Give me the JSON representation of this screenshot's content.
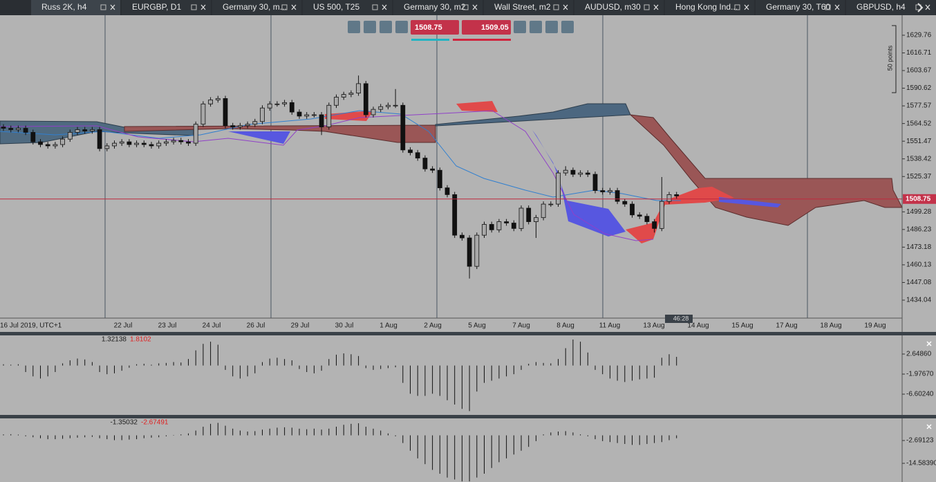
{
  "tabs": [
    "Russ 2K, h4",
    "EURGBP, D1",
    "Germany 30, m...",
    "US 500, T25",
    "Germany 30, m2",
    "Wall Street, m2",
    "AUDUSD, m30",
    "Hong Kong Ind...",
    "Germany 30, T60",
    "GBPUSD, h4"
  ],
  "toolbar": {
    "sell": 1508.75,
    "buy": 1509.05
  },
  "main_chart": {
    "candles": {
      "open": [
        1562,
        1561,
        1560,
        1561,
        1558,
        1551,
        1549,
        1548,
        1549,
        1553,
        1558,
        1560,
        1559,
        1560,
        1546,
        1548,
        1550,
        1551,
        1549,
        1550,
        1549,
        1548,
        1550,
        1551,
        1552,
        1551,
        1550,
        1564,
        1579,
        1582,
        1583,
        1563,
        1562,
        1563,
        1564,
        1566,
        1576,
        1579,
        1579,
        1580,
        1573,
        1570,
        1571,
        1571,
        1562,
        1578,
        1584,
        1586,
        1587,
        1594,
        1571,
        1575,
        1577,
        1578,
        1578,
        1545,
        1543,
        1539,
        1531,
        1530,
        1517,
        1512,
        1482,
        1480,
        1459,
        1482,
        1490,
        1486,
        1492,
        1491,
        1487,
        1502,
        1492,
        1495,
        1505,
        1505,
        1528,
        1530,
        1527,
        1528,
        1527,
        1515,
        1514,
        1515,
        1507,
        1505,
        1497,
        1496,
        1492,
        1487,
        1507,
        1512
      ],
      "high": [
        1564,
        1563,
        1563,
        1563,
        1560,
        1553,
        1551,
        1551,
        1555,
        1560,
        1562,
        1562,
        1562,
        1562,
        1550,
        1552,
        1553,
        1553,
        1552,
        1552,
        1551,
        1552,
        1553,
        1554,
        1554,
        1553,
        1566,
        1581,
        1584,
        1585,
        1585,
        1565,
        1565,
        1566,
        1568,
        1578,
        1581,
        1581,
        1582,
        1582,
        1575,
        1573,
        1573,
        1573,
        1580,
        1586,
        1588,
        1589,
        1600,
        1596,
        1577,
        1579,
        1580,
        1590,
        1580,
        1547,
        1545,
        1541,
        1533,
        1532,
        1519,
        1514,
        1484,
        1482,
        1484,
        1492,
        1492,
        1494,
        1494,
        1493,
        1504,
        1504,
        1497,
        1507,
        1507,
        1530,
        1533,
        1532,
        1530,
        1530,
        1529,
        1517,
        1517,
        1517,
        1509,
        1507,
        1499,
        1498,
        1494,
        1525,
        1514,
        1514
      ],
      "low": [
        1559,
        1558,
        1558,
        1556,
        1549,
        1547,
        1546,
        1546,
        1547,
        1551,
        1556,
        1557,
        1557,
        1544,
        1544,
        1546,
        1548,
        1547,
        1547,
        1547,
        1546,
        1546,
        1548,
        1549,
        1549,
        1548,
        1548,
        1562,
        1577,
        1580,
        1561,
        1560,
        1560,
        1561,
        1562,
        1564,
        1574,
        1577,
        1577,
        1571,
        1568,
        1568,
        1569,
        1556,
        1560,
        1576,
        1582,
        1584,
        1585,
        1569,
        1569,
        1573,
        1575,
        1576,
        1543,
        1541,
        1537,
        1529,
        1528,
        1515,
        1510,
        1480,
        1478,
        1450,
        1457,
        1480,
        1484,
        1484,
        1489,
        1485,
        1485,
        1490,
        1480,
        1493,
        1503,
        1503,
        1526,
        1525,
        1525,
        1525,
        1513,
        1512,
        1512,
        1505,
        1503,
        1495,
        1494,
        1490,
        1484,
        1485,
        1505,
        1509
      ],
      "close": [
        1561,
        1560,
        1561,
        1558,
        1551,
        1549,
        1548,
        1549,
        1553,
        1558,
        1560,
        1559,
        1560,
        1546,
        1548,
        1550,
        1551,
        1549,
        1550,
        1549,
        1548,
        1550,
        1551,
        1552,
        1551,
        1550,
        1564,
        1579,
        1582,
        1583,
        1563,
        1562,
        1563,
        1564,
        1566,
        1576,
        1579,
        1579,
        1580,
        1573,
        1570,
        1571,
        1571,
        1562,
        1578,
        1584,
        1586,
        1587,
        1594,
        1571,
        1575,
        1577,
        1578,
        1578,
        1545,
        1543,
        1539,
        1531,
        1530,
        1517,
        1512,
        1482,
        1480,
        1459,
        1482,
        1490,
        1486,
        1492,
        1491,
        1487,
        1502,
        1492,
        1495,
        1505,
        1505,
        1528,
        1530,
        1527,
        1528,
        1527,
        1515,
        1514,
        1515,
        1507,
        1505,
        1497,
        1496,
        1492,
        1487,
        1507,
        1512,
        1511
      ]
    },
    "ylim": [
      1420.75,
      1642.0
    ],
    "yticks": [
      1629.76,
      1616.71,
      1603.67,
      1590.62,
      1577.57,
      1564.52,
      1551.47,
      1538.42,
      1525.37,
      1499.28,
      1486.23,
      1473.18,
      1460.13,
      1447.08,
      1434.04
    ],
    "current_price": 1508.75,
    "x_labels": [
      "16 Jul 2019, UTC+1",
      "22 Jul",
      "23 Jul",
      "24 Jul",
      "26 Jul",
      "29 Jul",
      "30 Jul",
      "1 Aug",
      "2 Aug",
      "5 Aug",
      "7 Aug",
      "8 Aug",
      "11 Aug",
      "13 Aug",
      "14 Aug",
      "15 Aug",
      "17 Aug",
      "18 Aug",
      "19 Aug"
    ],
    "scale_label": "50 points",
    "timer": "46:28"
  },
  "oscillator_1": {
    "readouts": [
      1.32138,
      1.8102
    ],
    "values": [
      0.3,
      0.2,
      0.3,
      -1.5,
      -2.5,
      -3,
      -2.5,
      -1.5,
      0.5,
      1.2,
      1.6,
      1.4,
      0.8,
      -1.5,
      -2,
      -1.8,
      -1.2,
      -0.5,
      0.3,
      0.4,
      0.2,
      0.5,
      0.6,
      0.8,
      0.7,
      1.5,
      3.5,
      5,
      5.5,
      4.8,
      -1,
      -2.5,
      -3,
      -2.5,
      -1.8,
      0.8,
      1.6,
      1.8,
      1.5,
      1.2,
      -0.8,
      -1.5,
      -1.8,
      -1.2,
      1.5,
      2.5,
      2.8,
      2.6,
      2.2,
      -0.6,
      -1,
      -0.8,
      -0.6,
      -0.4,
      -4,
      -6.5,
      -7,
      -7,
      -6.5,
      -7,
      -8,
      -9,
      -10,
      -10.5,
      -6,
      -4,
      -3.5,
      -3,
      -2.5,
      -2,
      -1,
      0.4,
      0.8,
      0.6,
      0.5,
      1.5,
      4,
      6,
      5.5,
      3,
      -1,
      -2,
      -3,
      -3.5,
      -3.8,
      -3.5,
      -3.2,
      -3,
      -2.8,
      1.8,
      2.6,
      2
    ],
    "ylim": [
      -11.39,
      6.95
    ],
    "yticks": [
      {
        "value": 2.6486,
        "label": "2.64860"
      },
      {
        "value": -1.9767,
        "label": "-1.97670"
      },
      {
        "value": -6.6024,
        "label": "-6.60240"
      }
    ]
  },
  "oscillator_2": {
    "readouts": [
      -1.35032,
      -2.67491
    ],
    "values": [
      0.5,
      0.6,
      0.4,
      -0.5,
      -1,
      -1.5,
      -2,
      -2,
      -1.8,
      -1.5,
      -1.2,
      -1,
      -0.8,
      -1.5,
      -2,
      -2.5,
      -2.5,
      -2.2,
      -2,
      -1.5,
      -1.2,
      -1,
      -0.5,
      0.2,
      0.5,
      1,
      2.5,
      4.5,
      6,
      6.5,
      5,
      3.5,
      2.5,
      2,
      2.2,
      3,
      3.5,
      4,
      4.2,
      4,
      3.5,
      3.2,
      3.5,
      3,
      3.5,
      4.5,
      5.5,
      6,
      6.3,
      4.5,
      3.5,
      2.5,
      1,
      -0.5,
      -4,
      -8,
      -12,
      -15,
      -18,
      -20,
      -22,
      -23,
      -24,
      -24,
      -22,
      -20,
      -17,
      -14,
      -12,
      -10,
      -8,
      -6,
      -3,
      0.5,
      1.5,
      2,
      2.2,
      1.5,
      0.5,
      -0.5,
      -2,
      -3,
      -3.5,
      -4,
      -4.5,
      -5,
      -5,
      -4.5,
      -4,
      -3.5,
      -2.5,
      -1.5
    ],
    "ylim": [
      -24.31,
      8.84
    ],
    "yticks": [
      {
        "value": -2.69123,
        "label": "-2.69123"
      },
      {
        "value": -14.5839,
        "label": "-14.58390"
      }
    ]
  }
}
